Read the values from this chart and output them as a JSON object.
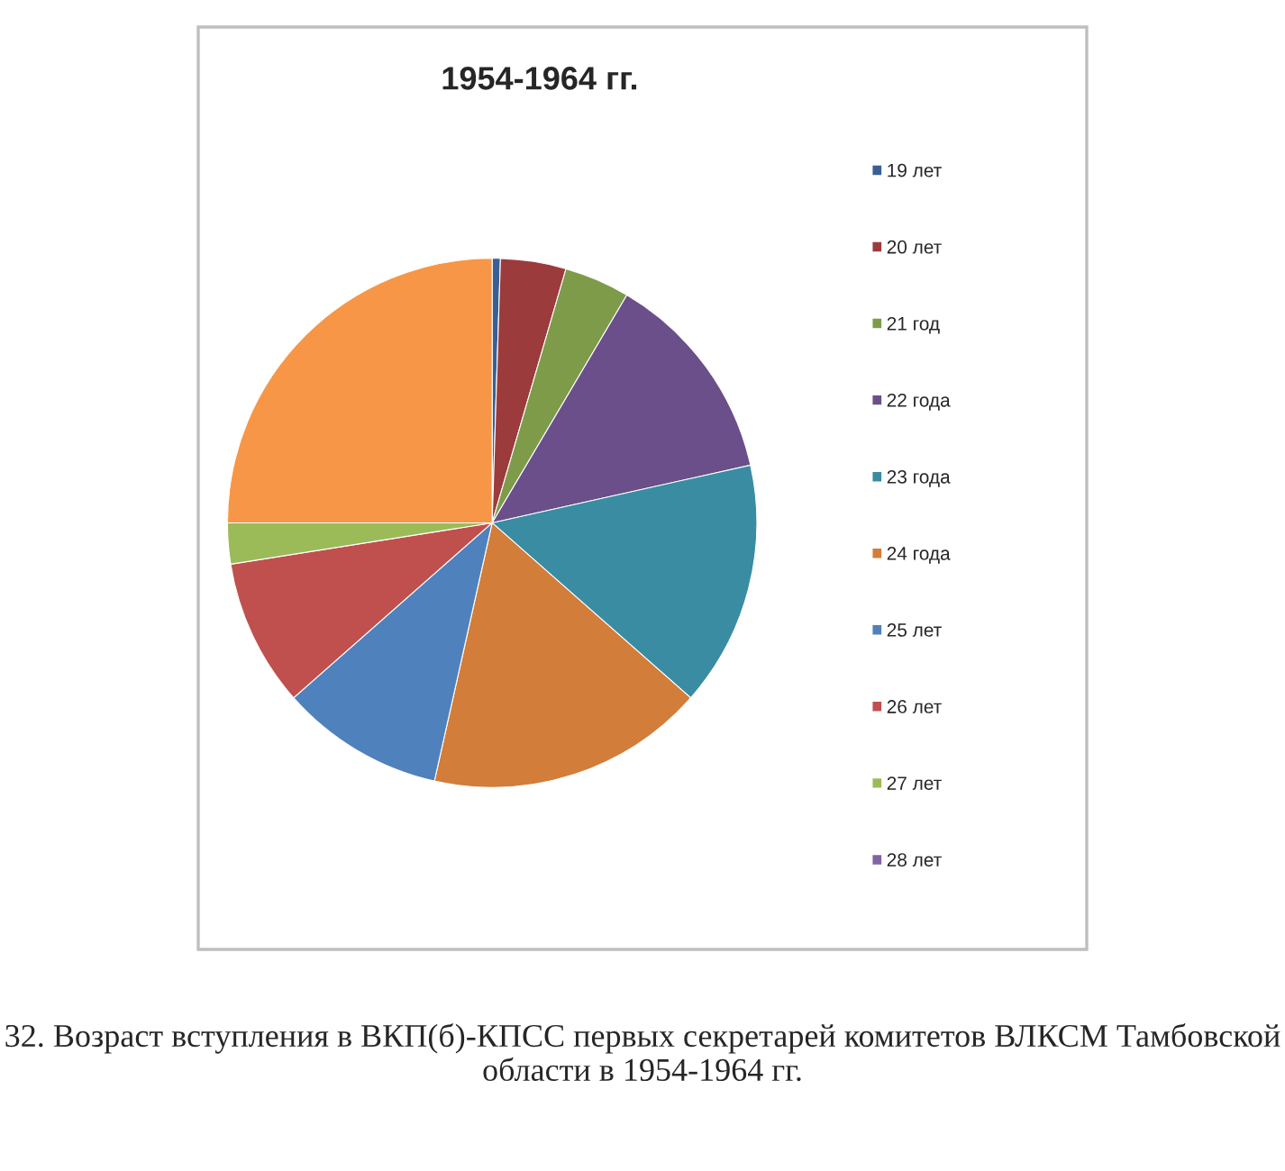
{
  "chart_data": {
    "type": "pie",
    "title": "1954-1964 гг.",
    "categories": [
      "19 лет",
      "20 лет",
      "21 год",
      "22 года",
      "23 года",
      "24 года",
      "25 лет",
      "26 лет",
      "27 лет",
      "28 лет",
      null
    ],
    "values": [
      0.5,
      4,
      4,
      13,
      15,
      17,
      10,
      9,
      2.5,
      0,
      25
    ],
    "colors": [
      "#3a5f94",
      "#9c3b3b",
      "#7e9b4a",
      "#6a4f8a",
      "#3a8ca3",
      "#d27d3a",
      "#4f81bd",
      "#c0504d",
      "#9bbb59",
      "#8064a2",
      "#f79646"
    ],
    "legend": "right",
    "annotations": [
      "32. Возраст вступления в ВКП(б)-КПСС первых секретарей комитетов ВЛКСМ Тамбовской области в 1954-1964 гг."
    ]
  }
}
